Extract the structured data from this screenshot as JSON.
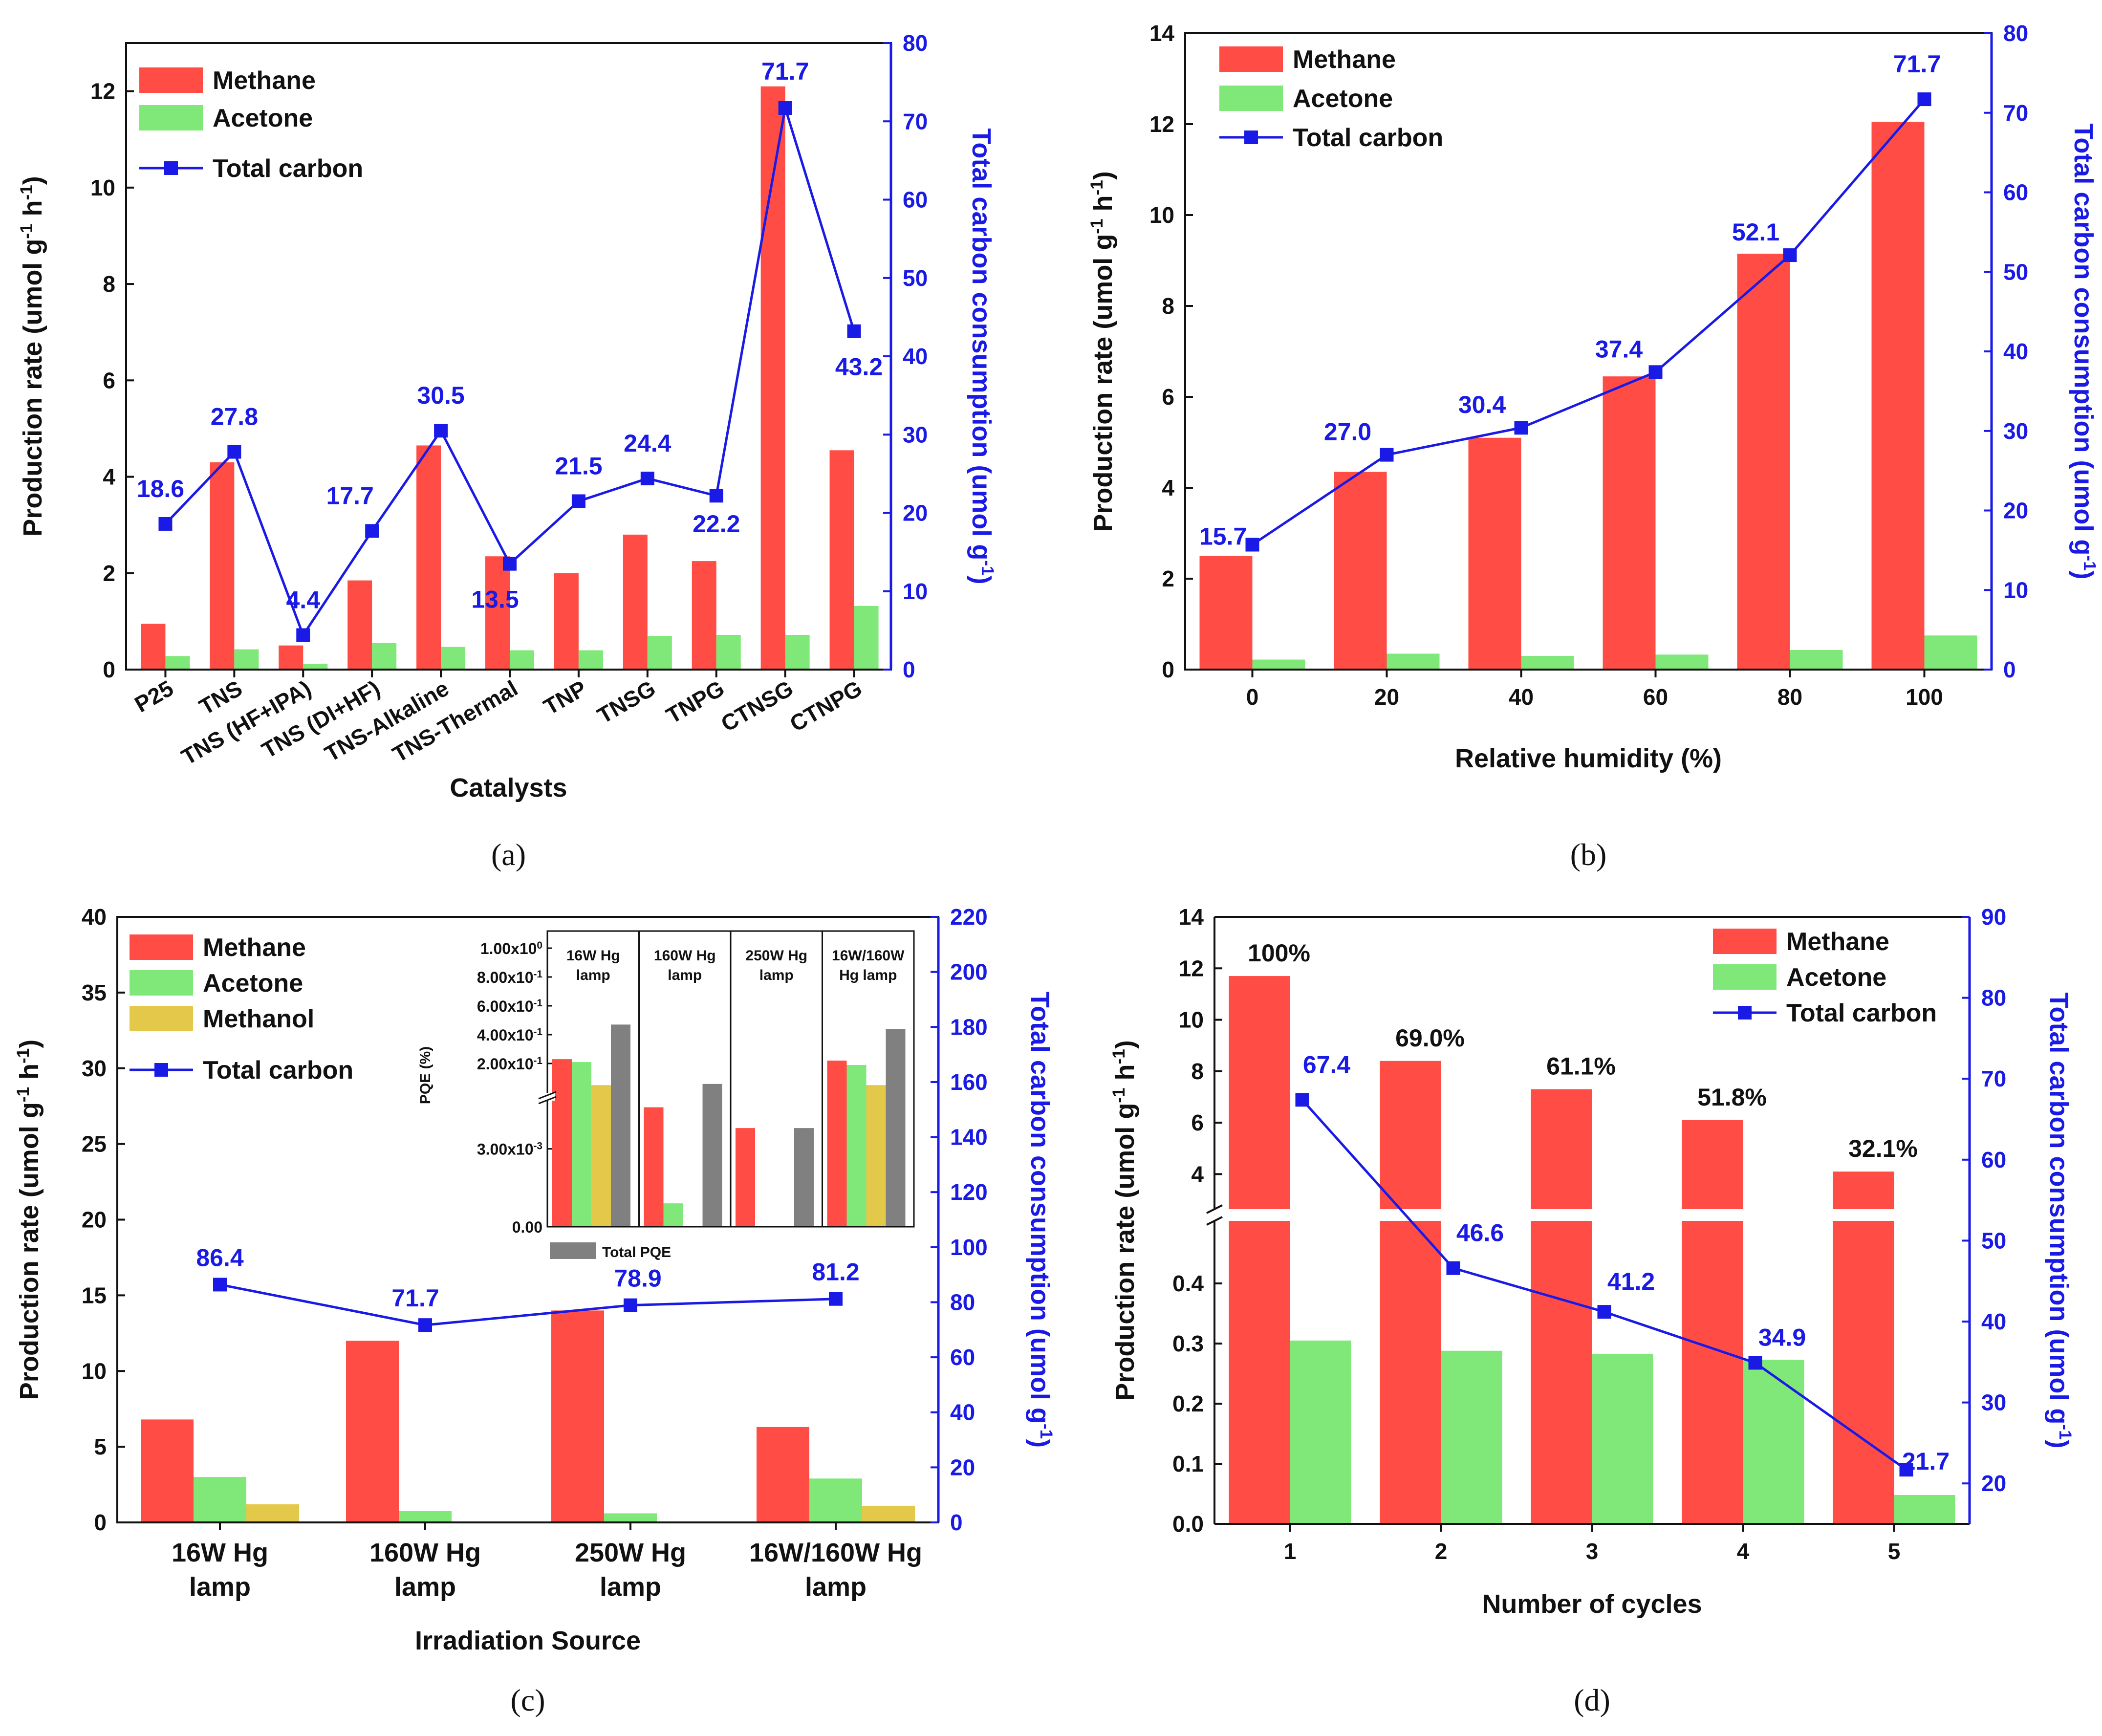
{
  "colors": {
    "methane": "#ff4c45",
    "acetone": "#7fe878",
    "methanol": "#e4c84a",
    "total_carbon": "#1a1ae6",
    "total_pqe": "#808080"
  },
  "chart_data": [
    {
      "panel_label": "(a)",
      "type": "bar+line",
      "xlabel": "Catalysts",
      "ylabel": "Production rate (umol g⁻¹ h⁻¹)",
      "y2label": "Total carbon consumption (umol g⁻¹)",
      "categories": [
        "P25",
        "TNS",
        "TNS (HF+IPA)",
        "TNS (DI+HF)",
        "TNS-Alkaline",
        "TNS-Thermal",
        "TNP",
        "TNSG",
        "TNPG",
        "CTNSG",
        "CTNPG"
      ],
      "ylim": [
        0,
        13
      ],
      "y_ticks": [
        "0",
        "2",
        "4",
        "6",
        "8",
        "10",
        "12"
      ],
      "y2lim": [
        0,
        80
      ],
      "y2_ticks": [
        "0",
        "10",
        "20",
        "30",
        "40",
        "50",
        "60",
        "70",
        "80"
      ],
      "legend": [
        "Methane",
        "Acetone",
        "Total carbon"
      ],
      "series": [
        {
          "name": "Methane",
          "kind": "bar",
          "values": [
            0.95,
            4.3,
            0.5,
            1.85,
            4.65,
            2.35,
            2.0,
            2.8,
            2.25,
            12.1,
            4.55
          ]
        },
        {
          "name": "Acetone",
          "kind": "bar",
          "values": [
            0.28,
            0.42,
            0.12,
            0.55,
            0.47,
            0.4,
            0.4,
            0.7,
            0.72,
            0.72,
            1.32
          ]
        },
        {
          "name": "Total carbon",
          "kind": "line",
          "axis": "right",
          "values": [
            18.6,
            27.8,
            4.4,
            17.7,
            30.5,
            13.5,
            21.5,
            24.4,
            22.2,
            71.7,
            43.2
          ],
          "labels": [
            "18.6",
            "27.8",
            "4.4",
            "17.7",
            "30.5",
            "13.5",
            "21.5",
            "24.4",
            "22.2",
            "71.7",
            "43.2"
          ]
        }
      ]
    },
    {
      "panel_label": "(b)",
      "type": "bar+line",
      "xlabel": "Relative humidity (%)",
      "ylabel": "Production rate (umol g⁻¹ h⁻¹)",
      "y2label": "Total carbon consumption (umol g⁻¹)",
      "categories": [
        "0",
        "20",
        "40",
        "60",
        "80",
        "100"
      ],
      "ylim": [
        0,
        14
      ],
      "y_ticks": [
        "0",
        "2",
        "4",
        "6",
        "8",
        "10",
        "12",
        "14"
      ],
      "y2lim": [
        0,
        80
      ],
      "y2_ticks": [
        "0",
        "10",
        "20",
        "30",
        "40",
        "50",
        "60",
        "70",
        "80"
      ],
      "legend": [
        "Methane",
        "Acetone",
        "Total carbon"
      ],
      "series": [
        {
          "name": "Methane",
          "kind": "bar",
          "values": [
            2.5,
            4.35,
            5.1,
            6.45,
            9.15,
            12.05
          ]
        },
        {
          "name": "Acetone",
          "kind": "bar",
          "values": [
            0.22,
            0.35,
            0.3,
            0.33,
            0.43,
            0.75
          ]
        },
        {
          "name": "Total carbon",
          "kind": "line",
          "axis": "right",
          "values": [
            15.7,
            27.0,
            30.4,
            37.4,
            52.1,
            71.7
          ],
          "labels": [
            "15.7",
            "27.0",
            "30.4",
            "37.4",
            "52.1",
            "71.7"
          ]
        }
      ]
    },
    {
      "panel_label": "(c)",
      "type": "bar+line",
      "xlabel": "Irradiation Source",
      "ylabel": "Production rate (umol g⁻¹ h⁻¹)",
      "y2label": "Total carbon consumption (umol g⁻¹)",
      "categories": [
        [
          "16W Hg",
          "lamp"
        ],
        [
          "160W Hg",
          "lamp"
        ],
        [
          "250W Hg",
          "lamp"
        ],
        [
          "16W/160W Hg",
          "lamp"
        ]
      ],
      "ylim": [
        0,
        40
      ],
      "y_ticks": [
        "0",
        "5",
        "10",
        "15",
        "20",
        "25",
        "30",
        "35",
        "40"
      ],
      "y2lim": [
        0,
        220
      ],
      "y2_ticks": [
        "0",
        "20",
        "40",
        "60",
        "80",
        "100",
        "120",
        "140",
        "160",
        "180",
        "200",
        "220"
      ],
      "legend": [
        "Methane",
        "Acetone",
        "Methanol",
        "Total carbon"
      ],
      "series": [
        {
          "name": "Methane",
          "kind": "bar",
          "values": [
            6.8,
            12.0,
            14.0,
            6.3
          ]
        },
        {
          "name": "Acetone",
          "kind": "bar",
          "values": [
            3.0,
            0.75,
            0.6,
            2.9
          ]
        },
        {
          "name": "Methanol",
          "kind": "bar",
          "values": [
            1.2,
            0,
            0,
            1.1
          ]
        },
        {
          "name": "Total carbon",
          "kind": "line",
          "axis": "right",
          "values": [
            86.4,
            71.7,
            78.9,
            81.2
          ],
          "labels": [
            "86.4",
            "71.7",
            "78.9",
            "81.2"
          ]
        }
      ],
      "inset": {
        "type": "bar",
        "ylabel": "PQE (%)",
        "y_ticks_upper": [
          "2.00x10⁻¹",
          "4.00x10⁻¹",
          "6.00x10⁻¹",
          "8.00x10⁻¹",
          "1.00x10⁰"
        ],
        "y_ticks_lower": [
          "0.00",
          "3.00x10⁻³"
        ],
        "groups": [
          [
            "16W Hg",
            "lamp"
          ],
          [
            "160W Hg",
            "lamp"
          ],
          [
            "250W Hg",
            "lamp"
          ],
          [
            "16W/160W",
            "Hg lamp"
          ]
        ],
        "legend": [
          "Total PQE"
        ],
        "series": [
          {
            "name": "Methane PQE",
            "values": [
              0.23,
              0.0046,
              0.0038,
              0.22
            ]
          },
          {
            "name": "Acetone PQE",
            "values": [
              0.21,
              0.0009,
              0,
              0.19
            ]
          },
          {
            "name": "Methanol PQE",
            "values": [
              0.05,
              0,
              0,
              0.05
            ]
          },
          {
            "name": "Total PQE",
            "values": [
              0.47,
              0.0055,
              0.0038,
              0.44
            ]
          }
        ]
      }
    },
    {
      "panel_label": "(d)",
      "type": "bar+line",
      "xlabel": "Number of cycles",
      "ylabel": "Production rate (umol g⁻¹ h⁻¹)",
      "y2label": "Total carbon consumption (umol g⁻¹)",
      "categories": [
        "1",
        "2",
        "3",
        "4",
        "5"
      ],
      "y_ticks_lower": [
        "0.0",
        "0.1",
        "0.2",
        "0.3",
        "0.4"
      ],
      "y_ticks_upper": [
        "4",
        "6",
        "8",
        "10",
        "12",
        "14"
      ],
      "y2lim": [
        15,
        90
      ],
      "y2_ticks": [
        "20",
        "30",
        "40",
        "50",
        "60",
        "70",
        "80",
        "90"
      ],
      "legend": [
        "Methane",
        "Acetone",
        "Total carbon"
      ],
      "series": [
        {
          "name": "Methane",
          "kind": "bar",
          "values": [
            11.7,
            8.4,
            7.3,
            6.1,
            4.1
          ],
          "percent_labels": [
            "100%",
            "69.0%",
            "61.1%",
            "51.8%",
            "32.1%"
          ]
        },
        {
          "name": "Acetone",
          "kind": "bar",
          "values": [
            0.305,
            0.288,
            0.283,
            0.273,
            0.048
          ]
        },
        {
          "name": "Total carbon",
          "kind": "line",
          "axis": "right",
          "values": [
            67.4,
            46.6,
            41.2,
            34.9,
            21.7
          ],
          "labels": [
            "67.4",
            "46.6",
            "41.2",
            "34.9",
            "21.7"
          ]
        }
      ]
    }
  ]
}
